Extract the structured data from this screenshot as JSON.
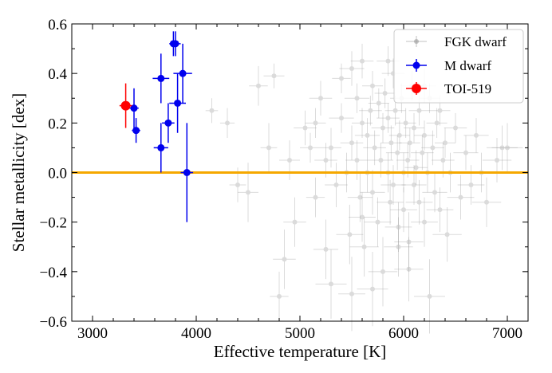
{
  "chart_data": {
    "type": "scatter",
    "title": "",
    "xlabel": "Effective temperature [K]",
    "ylabel": "Stellar metallicity [dex]",
    "xlim": [
      2800,
      7200
    ],
    "ylim": [
      -0.6,
      0.6
    ],
    "x_ticks": [
      "3000",
      "4000",
      "5000",
      "6000",
      "7000"
    ],
    "y_ticks": [
      "−0.6",
      "−0.4",
      "−0.2",
      "0.0",
      "0.2",
      "0.4",
      "0.6"
    ],
    "grid": false,
    "legend_position": "top-right",
    "reference_line": {
      "y": 0.0,
      "color": "#f5a800"
    },
    "series": [
      {
        "name": "FGK dwarf",
        "color": "#999999",
        "points": [
          [
            4150,
            0.25,
            60,
            0.05
          ],
          [
            4300,
            0.2,
            70,
            0.06
          ],
          [
            4400,
            -0.05,
            80,
            0.07
          ],
          [
            4600,
            0.35,
            90,
            0.08
          ],
          [
            4700,
            0.1,
            80,
            0.1
          ],
          [
            4750,
            0.39,
            100,
            0.05
          ],
          [
            4800,
            -0.5,
            90,
            0.1
          ],
          [
            4900,
            0.05,
            100,
            0.08
          ],
          [
            4950,
            -0.2,
            110,
            0.1
          ],
          [
            5050,
            0.18,
            110,
            0.07
          ],
          [
            5100,
            0.1,
            100,
            0.06
          ],
          [
            5150,
            -0.1,
            90,
            0.08
          ],
          [
            5200,
            0.3,
            110,
            0.07
          ],
          [
            5250,
            -0.31,
            120,
            0.12
          ],
          [
            5300,
            0.1,
            100,
            0.08
          ],
          [
            5350,
            -0.05,
            110,
            0.09
          ],
          [
            5400,
            0.22,
            120,
            0.06
          ],
          [
            5400,
            0.38,
            90,
            0.06
          ],
          [
            5450,
            0.0,
            120,
            0.08
          ],
          [
            5480,
            -0.25,
            130,
            0.12
          ],
          [
            5500,
            0.12,
            110,
            0.07
          ],
          [
            5500,
            -0.49,
            130,
            0.15
          ],
          [
            5550,
            0.3,
            120,
            0.06
          ],
          [
            5550,
            0.05,
            110,
            0.08
          ],
          [
            5580,
            -0.1,
            120,
            0.1
          ],
          [
            5600,
            0.2,
            100,
            0.06
          ],
          [
            5600,
            0.45,
            110,
            0.07
          ],
          [
            5620,
            -0.3,
            140,
            0.12
          ],
          [
            5650,
            0.15,
            120,
            0.07
          ],
          [
            5650,
            0.0,
            100,
            0.08
          ],
          [
            5680,
            0.25,
            110,
            0.06
          ],
          [
            5700,
            -0.08,
            120,
            0.09
          ],
          [
            5700,
            0.35,
            100,
            0.06
          ],
          [
            5720,
            0.1,
            110,
            0.07
          ],
          [
            5750,
            -0.2,
            130,
            0.1
          ],
          [
            5760,
            0.28,
            100,
            0.06
          ],
          [
            5780,
            0.05,
            120,
            0.07
          ],
          [
            5800,
            0.18,
            110,
            0.06
          ],
          [
            5800,
            -0.4,
            140,
            0.14
          ],
          [
            5820,
            0.32,
            100,
            0.06
          ],
          [
            5850,
            0.0,
            120,
            0.08
          ],
          [
            5850,
            0.22,
            110,
            0.06
          ],
          [
            5870,
            -0.12,
            130,
            0.09
          ],
          [
            5880,
            0.12,
            100,
            0.07
          ],
          [
            5900,
            0.4,
            110,
            0.06
          ],
          [
            5900,
            -0.05,
            120,
            0.08
          ],
          [
            5920,
            0.25,
            100,
            0.06
          ],
          [
            5940,
            0.08,
            110,
            0.07
          ],
          [
            5950,
            -0.22,
            130,
            0.1
          ],
          [
            5960,
            0.15,
            100,
            0.06
          ],
          [
            5980,
            0.3,
            110,
            0.06
          ],
          [
            6000,
            0.0,
            120,
            0.08
          ],
          [
            6000,
            -0.15,
            130,
            0.09
          ],
          [
            6020,
            0.2,
            100,
            0.06
          ],
          [
            6040,
            0.05,
            110,
            0.07
          ],
          [
            6050,
            -0.28,
            140,
            0.12
          ],
          [
            6060,
            0.12,
            100,
            0.06
          ],
          [
            6080,
            0.35,
            110,
            0.06
          ],
          [
            6100,
            -0.05,
            120,
            0.08
          ],
          [
            6100,
            0.18,
            100,
            0.06
          ],
          [
            6120,
            0.02,
            110,
            0.07
          ],
          [
            6150,
            0.25,
            100,
            0.06
          ],
          [
            6150,
            -0.12,
            130,
            0.09
          ],
          [
            6180,
            0.08,
            110,
            0.07
          ],
          [
            6200,
            -0.2,
            130,
            0.1
          ],
          [
            6200,
            0.15,
            100,
            0.06
          ],
          [
            6230,
            0.0,
            120,
            0.08
          ],
          [
            6250,
            -0.5,
            150,
            0.15
          ],
          [
            6250,
            0.3,
            100,
            0.06
          ],
          [
            6280,
            0.1,
            110,
            0.07
          ],
          [
            6300,
            -0.08,
            120,
            0.08
          ],
          [
            6320,
            0.2,
            100,
            0.06
          ],
          [
            6350,
            -0.15,
            130,
            0.09
          ],
          [
            6380,
            0.05,
            110,
            0.07
          ],
          [
            6400,
            0.12,
            100,
            0.06
          ],
          [
            6420,
            -0.25,
            140,
            0.11
          ],
          [
            6450,
            0.0,
            120,
            0.08
          ],
          [
            6500,
            0.18,
            110,
            0.06
          ],
          [
            6550,
            -0.1,
            130,
            0.09
          ],
          [
            6600,
            0.08,
            120,
            0.07
          ],
          [
            6650,
            -0.05,
            130,
            0.08
          ],
          [
            6700,
            0.15,
            120,
            0.07
          ],
          [
            6750,
            0.0,
            130,
            0.08
          ],
          [
            6800,
            -0.12,
            140,
            0.1
          ],
          [
            6900,
            0.05,
            140,
            0.09
          ],
          [
            6950,
            0.1,
            150,
            0.09
          ],
          [
            7000,
            0.1,
            150,
            0.1
          ],
          [
            5300,
            -0.45,
            150,
            0.14
          ],
          [
            5700,
            -0.47,
            150,
            0.15
          ],
          [
            6050,
            -0.39,
            140,
            0.13
          ],
          [
            5500,
            0.42,
            120,
            0.07
          ],
          [
            6200,
            0.35,
            110,
            0.07
          ],
          [
            4500,
            -0.08,
            100,
            0.12
          ],
          [
            4850,
            -0.35,
            110,
            0.12
          ],
          [
            5150,
            0.2,
            100,
            0.06
          ],
          [
            5600,
            -0.18,
            130,
            0.1
          ],
          [
            5950,
            -0.3,
            140,
            0.12
          ],
          [
            6350,
            0.25,
            100,
            0.06
          ],
          [
            5250,
            0.05,
            110,
            0.07
          ],
          [
            5850,
            0.45,
            110,
            0.06
          ]
        ]
      },
      {
        "name": "M dwarf",
        "color": "#0000ee",
        "points": [
          [
            3400,
            0.26,
            45,
            0.08
          ],
          [
            3420,
            0.17,
            40,
            0.05
          ],
          [
            3660,
            0.38,
            80,
            0.1
          ],
          [
            3660,
            0.1,
            70,
            0.1
          ],
          [
            3730,
            0.2,
            60,
            0.08
          ],
          [
            3780,
            0.52,
            40,
            0.05
          ],
          [
            3800,
            0.52,
            50,
            0.05
          ],
          [
            3820,
            0.28,
            80,
            0.12
          ],
          [
            3870,
            0.4,
            90,
            0.12
          ],
          [
            3910,
            0.0,
            60,
            0.2
          ]
        ]
      },
      {
        "name": "TOI-519",
        "color": "#ff0000",
        "points": [
          [
            3320,
            0.27,
            60,
            0.09
          ]
        ]
      }
    ]
  }
}
